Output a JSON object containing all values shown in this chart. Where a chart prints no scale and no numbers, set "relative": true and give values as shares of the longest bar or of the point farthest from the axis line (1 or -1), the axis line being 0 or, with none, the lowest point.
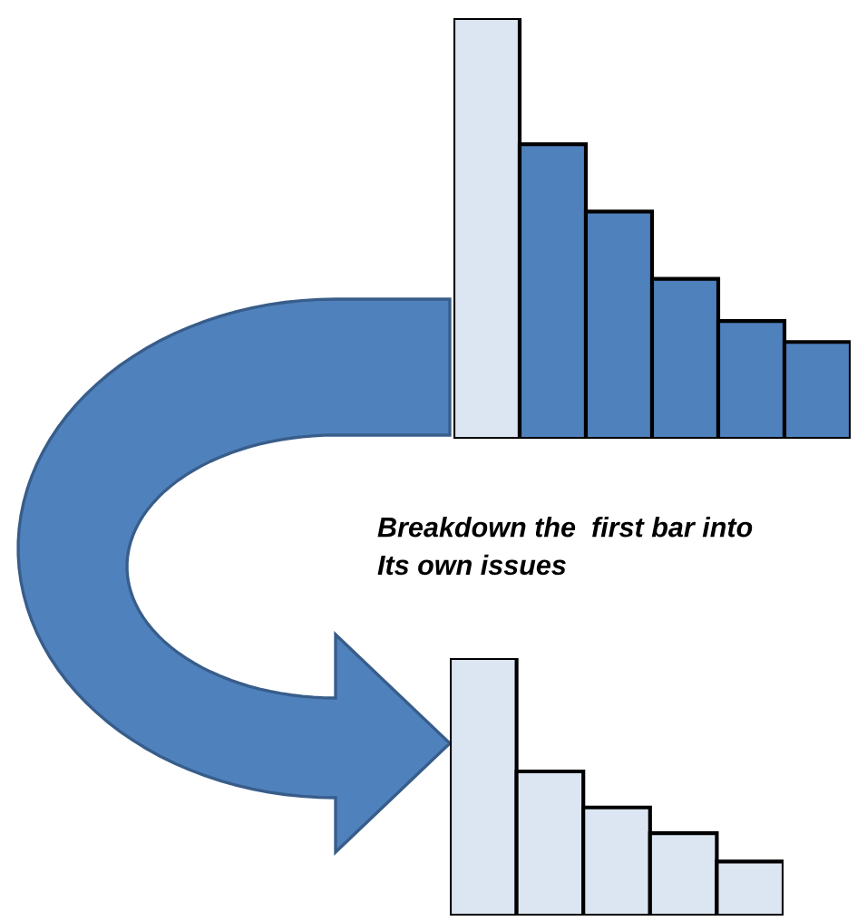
{
  "chart_data": [
    {
      "type": "bar",
      "relative": true,
      "categories": [
        null,
        null,
        null,
        null,
        null,
        null
      ],
      "values": [
        1,
        0.7,
        0.54,
        0.38,
        0.28,
        0.23
      ],
      "colors": [
        "#dce6f2",
        "#4f81bd",
        "#4f81bd",
        "#4f81bd",
        "#4f81bd",
        "#4f81bd"
      ],
      "annotations": [
        "Breakdown the  first bar into\nIts own issues"
      ]
    },
    {
      "type": "bar",
      "relative": true,
      "categories": [
        null,
        null,
        null,
        null,
        null
      ],
      "values": [
        1,
        0.56,
        0.42,
        0.32,
        0.21
      ],
      "colors": [
        "#dce6f2",
        "#dce6f2",
        "#dce6f2",
        "#dce6f2",
        "#dce6f2"
      ]
    }
  ]
}
